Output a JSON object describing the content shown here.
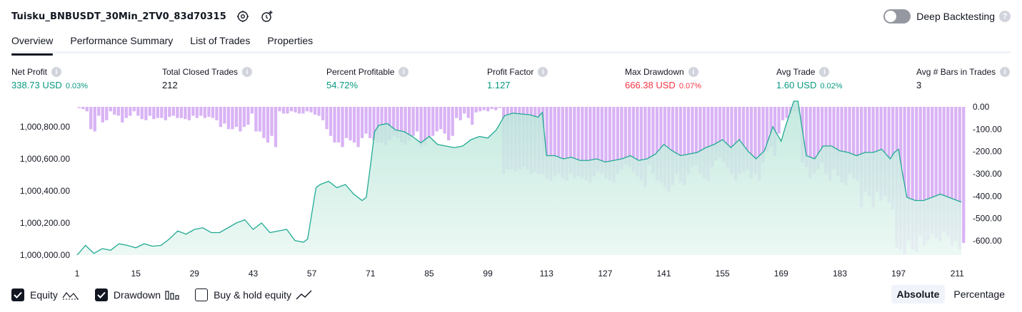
{
  "header": {
    "strategy_name": "Tuisku_BNBUSDT_30Min_2TV0_83d70315",
    "deep_backtesting_label": "Deep Backtesting",
    "deep_backtesting_enabled": false,
    "icons": [
      "settings-icon",
      "add-alert-icon",
      "help-icon"
    ]
  },
  "tabs": [
    {
      "label": "Overview",
      "active": true
    },
    {
      "label": "Performance Summary",
      "active": false
    },
    {
      "label": "List of Trades",
      "active": false
    },
    {
      "label": "Properties",
      "active": false
    }
  ],
  "metrics": [
    {
      "label": "Net Profit",
      "value": "338.73 USD",
      "pct": "0.03%",
      "tone": "pos"
    },
    {
      "label": "Total Closed Trades",
      "value": "212",
      "pct": "",
      "tone": "neutral"
    },
    {
      "label": "Percent Profitable",
      "value": "54.72%",
      "pct": "",
      "tone": "pos"
    },
    {
      "label": "Profit Factor",
      "value": "1.127",
      "pct": "",
      "tone": "pos"
    },
    {
      "label": "Max Drawdown",
      "value": "666.38 USD",
      "pct": "0.07%",
      "tone": "neg"
    },
    {
      "label": "Avg Trade",
      "value": "1.60 USD",
      "pct": "0.02%",
      "tone": "pos"
    },
    {
      "label": "Avg # Bars in Trades",
      "value": "3",
      "pct": "",
      "tone": "neutral"
    }
  ],
  "legend": {
    "equity_label": "Equity",
    "equity_checked": true,
    "drawdown_label": "Drawdown",
    "drawdown_checked": true,
    "buyhold_label": "Buy & hold equity",
    "buyhold_checked": false
  },
  "mode": {
    "absolute_label": "Absolute",
    "percentage_label": "Percentage",
    "selected": "Absolute"
  },
  "colors": {
    "equity_line": "#22ab94",
    "equity_fill_top": "#b9e6d9",
    "equity_fill_bottom": "#e9f7f2",
    "drawdown_bar": "#d9b3f5",
    "positive": "#089981",
    "negative": "#f23645"
  },
  "chart_data": [
    {
      "type": "area",
      "series_name": "Equity",
      "x_ticks": [
        1,
        15,
        29,
        43,
        57,
        71,
        85,
        99,
        113,
        127,
        141,
        155,
        169,
        183,
        197,
        211
      ],
      "x_range": [
        1,
        213
      ],
      "ylim": [
        1000000,
        1001000
      ],
      "y_ticks": [
        "1,000,000.00",
        "1,000,200.00",
        "1,000,400.00",
        "1,000,600.00",
        "1,000,800.00"
      ],
      "y_tick_values": [
        1000000,
        1000200,
        1000400,
        1000600,
        1000800
      ],
      "x": [
        1,
        3,
        5,
        7,
        9,
        11,
        13,
        15,
        17,
        19,
        21,
        23,
        25,
        27,
        29,
        31,
        33,
        35,
        37,
        39,
        41,
        43,
        45,
        47,
        49,
        51,
        53,
        55,
        56,
        57,
        58,
        59,
        61,
        63,
        65,
        67,
        69,
        70,
        71,
        72,
        73,
        75,
        77,
        79,
        81,
        83,
        85,
        87,
        89,
        91,
        93,
        95,
        97,
        99,
        101,
        103,
        105,
        107,
        109,
        111,
        112,
        113,
        115,
        117,
        119,
        121,
        123,
        125,
        127,
        129,
        131,
        133,
        135,
        137,
        139,
        141,
        143,
        145,
        147,
        149,
        151,
        153,
        155,
        157,
        159,
        161,
        163,
        165,
        167,
        169,
        170,
        171,
        172,
        173,
        175,
        177,
        179,
        181,
        183,
        185,
        187,
        189,
        191,
        193,
        195,
        196,
        197,
        198,
        199,
        201,
        203,
        205,
        207,
        209,
        211,
        212
      ],
      "y": [
        1000000,
        1000060,
        1000010,
        1000040,
        1000030,
        1000070,
        1000060,
        1000045,
        1000070,
        1000055,
        1000060,
        1000100,
        1000150,
        1000130,
        1000160,
        1000170,
        1000140,
        1000140,
        1000170,
        1000200,
        1000220,
        1000160,
        1000200,
        1000140,
        1000150,
        1000160,
        1000090,
        1000080,
        1000100,
        1000260,
        1000420,
        1000440,
        1000460,
        1000420,
        1000440,
        1000380,
        1000340,
        1000360,
        1000560,
        1000770,
        1000810,
        1000820,
        1000780,
        1000770,
        1000740,
        1000700,
        1000740,
        1000690,
        1000680,
        1000670,
        1000680,
        1000720,
        1000740,
        1000730,
        1000780,
        1000870,
        1000885,
        1000880,
        1000875,
        1000860,
        1000890,
        1000620,
        1000620,
        1000600,
        1000610,
        1000590,
        1000590,
        1000600,
        1000580,
        1000590,
        1000600,
        1000620,
        1000590,
        1000600,
        1000630,
        1000690,
        1000650,
        1000620,
        1000630,
        1000640,
        1000670,
        1000690,
        1000720,
        1000670,
        1000720,
        1000650,
        1000600,
        1000650,
        1000800,
        1000710,
        1000800,
        1000880,
        1000960,
        1000960,
        1000620,
        1000600,
        1000680,
        1000680,
        1000650,
        1000640,
        1000620,
        1000640,
        1000640,
        1000660,
        1000600,
        1000640,
        1000660,
        1000500,
        1000360,
        1000340,
        1000340,
        1000360,
        1000380,
        1000360,
        1000340,
        1000330
      ]
    },
    {
      "type": "bar",
      "series_name": "Drawdown",
      "ylim": [
        -650,
        0
      ],
      "y_ticks": [
        "0.00",
        "-100.00",
        "-200.00",
        "-300.00",
        "-400.00",
        "-500.00",
        "-600.00"
      ],
      "y_tick_values": [
        0,
        -100,
        -200,
        -300,
        -400,
        -500,
        -600
      ],
      "values": [
        -5,
        -10,
        -20,
        -100,
        -110,
        -40,
        -70,
        -60,
        -20,
        -35,
        -40,
        -70,
        -50,
        -40,
        -20,
        -40,
        -55,
        -60,
        -40,
        -55,
        -50,
        -50,
        -60,
        -45,
        -40,
        -50,
        -50,
        -55,
        -60,
        -40,
        -50,
        -40,
        -50,
        -45,
        -50,
        -60,
        -90,
        -75,
        -100,
        -100,
        -90,
        -110,
        -90,
        -80,
        -30,
        -110,
        -110,
        -140,
        -160,
        -130,
        -180,
        -20,
        -30,
        -30,
        -20,
        -25,
        -30,
        -30,
        -20,
        -25,
        -35,
        -40,
        -60,
        -100,
        -130,
        -160,
        -160,
        -180,
        -140,
        -150,
        -160,
        -180,
        -140,
        -120,
        -140,
        -150,
        -160,
        -160,
        -170,
        -150,
        -130,
        -140,
        -160,
        -170,
        -150,
        -130,
        -110,
        -180,
        -170,
        -140,
        -130,
        -110,
        -100,
        -120,
        -150,
        -130,
        -50,
        -60,
        -30,
        -50,
        -80,
        -25,
        -20,
        -15,
        -20,
        -10,
        -15,
        -5,
        -300,
        -280,
        -280,
        -290,
        -280,
        -270,
        -280,
        -300,
        -290,
        -300,
        -300,
        -320,
        -330,
        -310,
        -300,
        -320,
        -330,
        -300,
        -320,
        -310,
        -320,
        -330,
        -340,
        -310,
        -290,
        -300,
        -320,
        -330,
        -340,
        -300,
        -280,
        -260,
        -270,
        -290,
        -310,
        -330,
        -360,
        -260,
        -300,
        -330,
        -340,
        -360,
        -380,
        -350,
        -300,
        -340,
        -350,
        -300,
        -270,
        -260,
        -300,
        -320,
        -330,
        -270,
        -240,
        -230,
        -250,
        -270,
        -300,
        -330,
        -300,
        -290,
        -280,
        -320,
        -300,
        -330,
        -250,
        -200,
        -180,
        -220,
        -120,
        -60,
        -50,
        -30,
        -20,
        -30,
        -250,
        -270,
        -320,
        -300,
        -280,
        -250,
        -300,
        -330,
        -280,
        -310,
        -340,
        -350,
        -300,
        -320,
        -330,
        -450,
        -380,
        -400,
        -450,
        -380,
        -420,
        -400,
        -430,
        -460,
        -630,
        -640,
        -660,
        -600,
        -640,
        -650,
        -580,
        -620,
        -600,
        -570,
        -590,
        -600,
        -560,
        -580,
        -620,
        -600,
        -640,
        -610
      ]
    }
  ]
}
